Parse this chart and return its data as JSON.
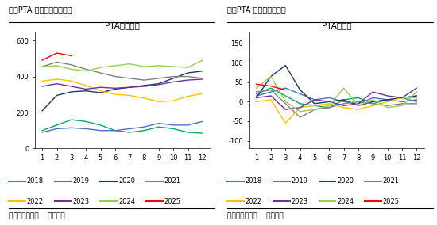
{
  "chart1_title": "PTA社会库存",
  "chart1_header": "图：PTA 社会库存（万吨）",
  "chart1_ylim": [
    0,
    650
  ],
  "chart1_yticks": [
    0,
    200,
    400,
    600
  ],
  "chart2_title": "PTA供需差",
  "chart2_header": "图：PTA 供需差（万吨）",
  "chart2_ylim": [
    -120,
    180
  ],
  "chart2_yticks": [
    -100,
    -50,
    0,
    50,
    100,
    150
  ],
  "months": [
    1,
    2,
    3,
    4,
    5,
    6,
    7,
    8,
    9,
    10,
    11,
    12
  ],
  "footnote": "数据来源：钢联    正信期货",
  "series_colors": {
    "2018": "#00b050",
    "2019": "#4472c4",
    "2020": "#1f3864",
    "2021": "#808080",
    "2022": "#ffc000",
    "2023": "#7030a0",
    "2024": "#92d050",
    "2025": "#ff0000"
  },
  "chart1_data": {
    "2018": [
      100,
      130,
      160,
      150,
      130,
      100,
      90,
      100,
      120,
      110,
      90,
      85
    ],
    "2019": [
      90,
      110,
      115,
      110,
      100,
      100,
      110,
      120,
      140,
      130,
      130,
      150
    ],
    "2020": [
      210,
      295,
      315,
      320,
      310,
      330,
      340,
      350,
      360,
      390,
      420,
      430
    ],
    "2021": [
      455,
      480,
      465,
      440,
      420,
      400,
      390,
      380,
      390,
      400,
      400,
      390
    ],
    "2022": [
      375,
      385,
      375,
      350,
      320,
      300,
      295,
      280,
      260,
      265,
      290,
      305
    ],
    "2023": [
      345,
      360,
      345,
      330,
      340,
      335,
      340,
      345,
      355,
      370,
      380,
      385
    ],
    "2024": [
      455,
      460,
      440,
      430,
      450,
      460,
      470,
      455,
      460,
      455,
      450,
      490
    ],
    "2025": [
      490,
      530,
      515,
      null,
      null,
      null,
      null,
      null,
      null,
      null,
      null,
      null
    ]
  },
  "chart2_data": {
    "2018": [
      20,
      35,
      15,
      -5,
      -10,
      -15,
      5,
      10,
      -5,
      5,
      10,
      0
    ],
    "2019": [
      15,
      25,
      35,
      20,
      5,
      10,
      0,
      -5,
      10,
      5,
      0,
      5
    ],
    "2020": [
      10,
      65,
      93,
      30,
      -5,
      0,
      5,
      -10,
      0,
      5,
      10,
      15
    ],
    "2021": [
      25,
      30,
      -5,
      -40,
      -20,
      -15,
      -5,
      0,
      -5,
      -10,
      -5,
      -5
    ],
    "2022": [
      0,
      5,
      -55,
      -15,
      -10,
      -5,
      -15,
      -20,
      -10,
      0,
      10,
      10
    ],
    "2023": [
      10,
      15,
      -20,
      -15,
      5,
      0,
      -10,
      -5,
      25,
      15,
      10,
      35
    ],
    "2024": [
      35,
      65,
      0,
      -25,
      -20,
      -10,
      35,
      -10,
      5,
      -15,
      -10,
      25
    ],
    "2025": [
      45,
      40,
      30,
      null,
      null,
      null,
      null,
      null,
      null,
      null,
      null,
      null
    ]
  },
  "years": [
    "2018",
    "2019",
    "2020",
    "2021",
    "2022",
    "2023",
    "2024",
    "2025"
  ],
  "legend_row1": [
    "2018",
    "2019",
    "2020",
    "2021"
  ],
  "legend_row2": [
    "2022",
    "2023",
    "2024",
    "2025"
  ]
}
